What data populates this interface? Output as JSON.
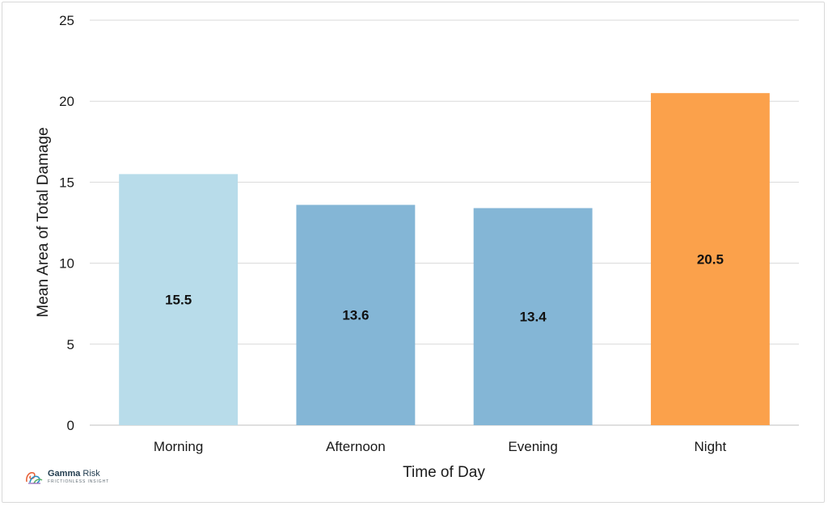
{
  "chart_data": {
    "type": "bar",
    "title": "",
    "xlabel": "Time of Day",
    "ylabel": "Mean Area of Total Damage",
    "categories": [
      "Morning",
      "Afternoon",
      "Evening",
      "Night"
    ],
    "values": [
      15.5,
      13.6,
      13.4,
      20.5
    ],
    "data_labels": [
      "15.5",
      "13.6",
      "13.4",
      "20.5"
    ],
    "bar_colors": [
      "#b8dcea",
      "#84b6d6",
      "#84b6d6",
      "#fba14b"
    ],
    "ylim": [
      0,
      25
    ],
    "yticks": [
      0,
      5,
      10,
      15,
      20,
      25
    ],
    "grid": true,
    "legend": "none"
  },
  "brand": {
    "name_bold": "Gamma",
    "name_regular": " Risk",
    "tagline": "FRICTIONLESS INSIGHT"
  }
}
